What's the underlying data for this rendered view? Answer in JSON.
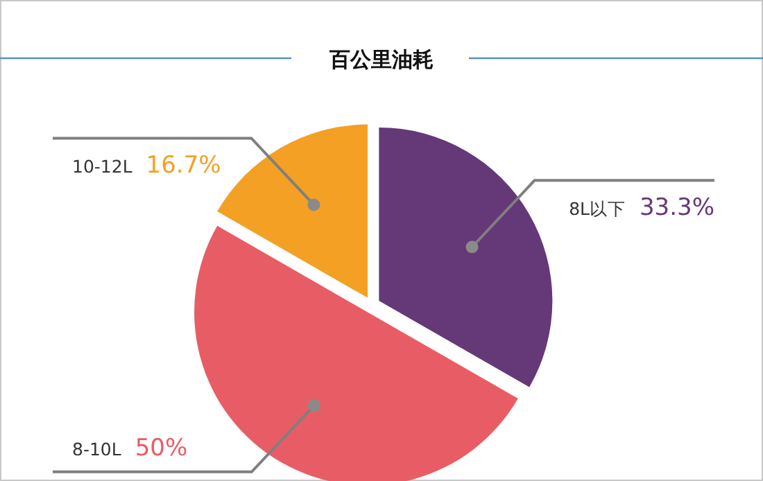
{
  "chart_data": {
    "type": "pie",
    "title": "百公里油耗",
    "categories": [
      "8L以下",
      "8-10L",
      "10-12L"
    ],
    "values": [
      33.3,
      50,
      16.7
    ],
    "colors": [
      "#653878",
      "#e85d65",
      "#f3a024"
    ],
    "value_labels": [
      "33.3%",
      "50%",
      "16.7%"
    ]
  }
}
